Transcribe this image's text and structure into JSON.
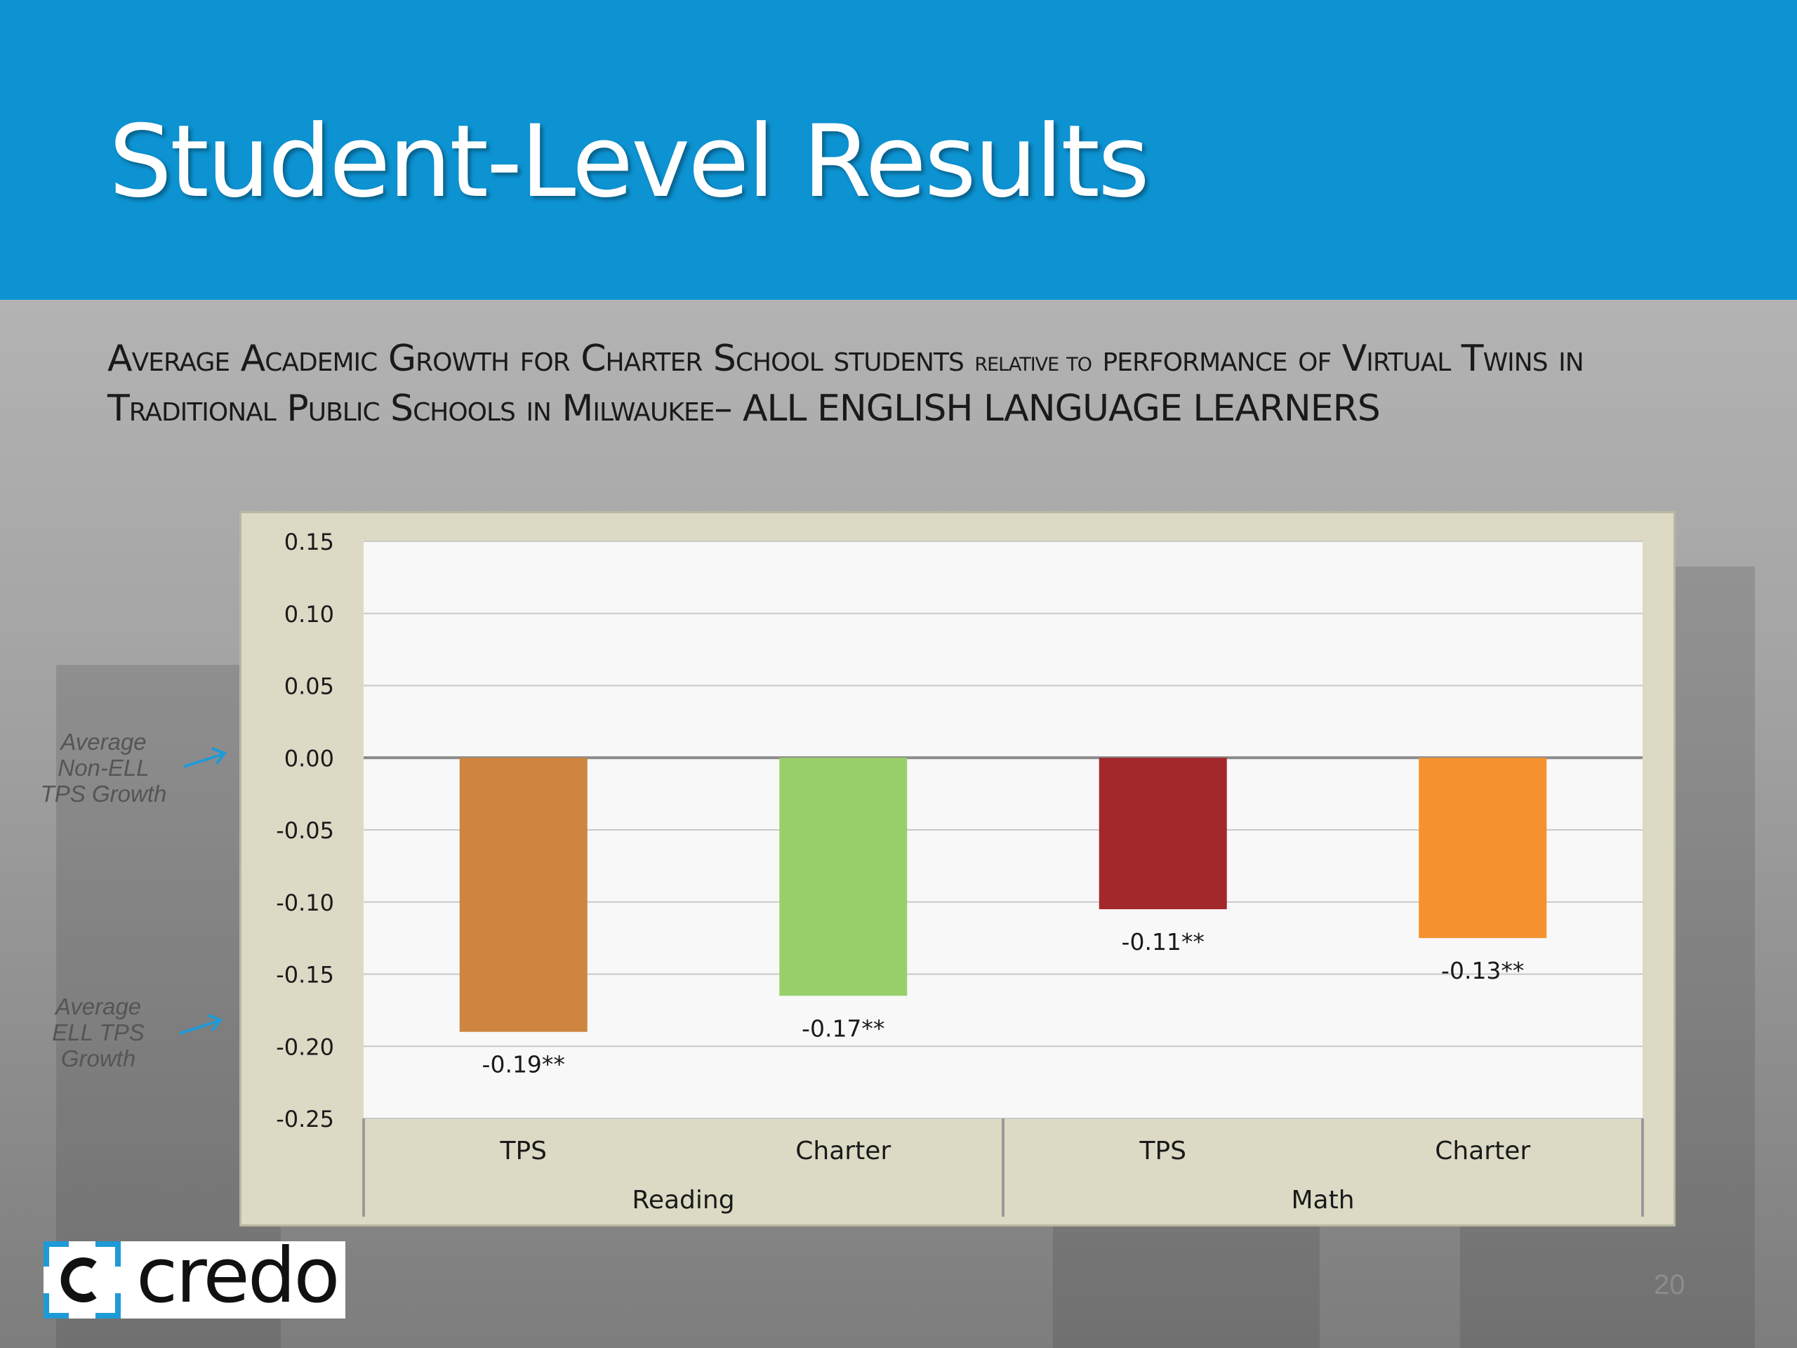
{
  "slide": {
    "title": "Student-Level Results",
    "subtitle_parts": [
      "Average Academic Growth for Charter School students",
      "relative to",
      "performance of Virtual Twins in Traditional Public Schools in Milwaukee– ALL ENGLISH LANGUAGE LEARNERS"
    ],
    "page_number": "20"
  },
  "annotations": {
    "non_ell": [
      "Average",
      "Non-ELL",
      "TPS Growth"
    ],
    "ell": [
      "Average",
      "ELL TPS",
      "Growth"
    ]
  },
  "logo": {
    "text": "credo"
  },
  "colors": {
    "header": "#0d93d2",
    "annotation_arrow": "#1f9ad6",
    "bars": [
      "#cd853f",
      "#99cf6b",
      "#a3282b",
      "#f5922f"
    ]
  },
  "chart_data": {
    "type": "bar",
    "categories": [
      "TPS",
      "Charter",
      "TPS",
      "Charter"
    ],
    "groups": [
      {
        "label": "Reading",
        "categories": [
          "TPS",
          "Charter"
        ]
      },
      {
        "label": "Math",
        "categories": [
          "TPS",
          "Charter"
        ]
      }
    ],
    "values": [
      -0.19,
      -0.165,
      -0.105,
      -0.125
    ],
    "data_labels": [
      "-0.19**",
      "-0.17**",
      "-0.11**",
      "-0.13**"
    ],
    "yticks": [
      "0.15",
      "0.10",
      "0.05",
      "0.00",
      "-0.05",
      "-0.10",
      "-0.15",
      "-0.20",
      "-0.25"
    ],
    "ylim": [
      -0.25,
      0.15
    ],
    "grid": true,
    "legend": "none"
  }
}
